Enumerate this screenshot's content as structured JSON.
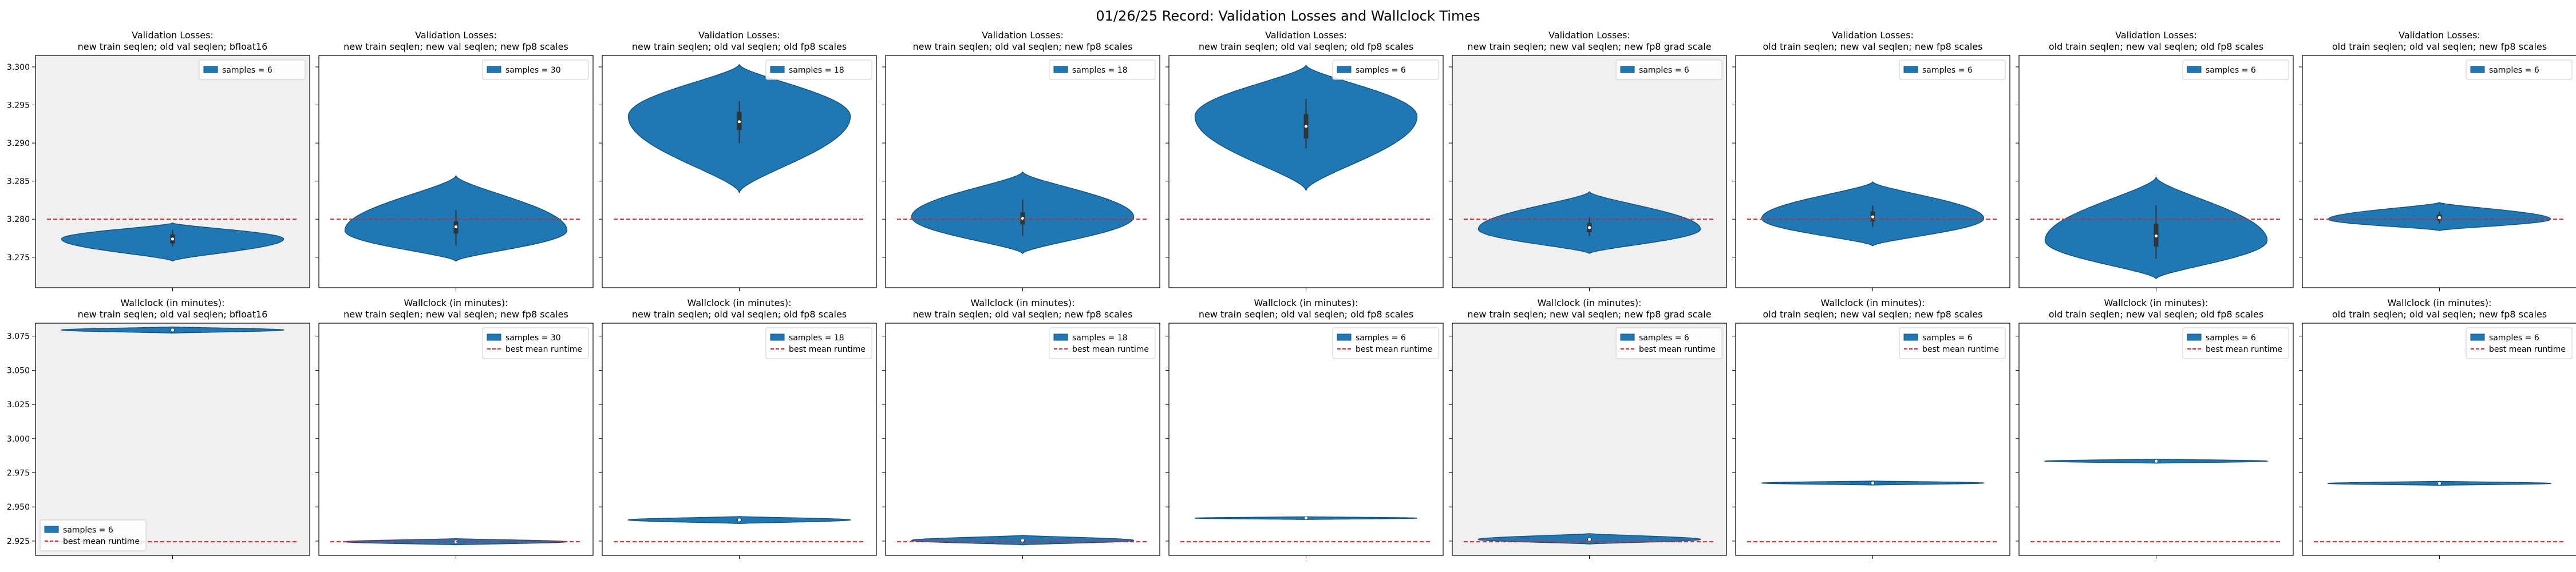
{
  "figure": {
    "title": "01/26/25 Record: Validation Losses and Wallclock Times"
  },
  "colors": {
    "violin_fill": "#1f77b4",
    "violin_edge": "#16557f",
    "reference_line": "#d62728",
    "shaded_panel_bg": "#f0f0f0",
    "panel_bg": "#ffffff",
    "box": "#333333"
  },
  "chart_data": [
    {
      "type": "violin",
      "row": "loss",
      "title": "Validation Losses:",
      "subtitle": "new train seqlen; old val seqlen; bfloat16",
      "ylim": [
        3.271,
        3.3015
      ],
      "yticks": [
        "3.275",
        "3.280",
        "3.285",
        "3.290",
        "3.295",
        "3.300"
      ],
      "reference": 3.28,
      "legend": {
        "position": "upper-right",
        "entries": [
          "samples = 6"
        ]
      },
      "shaded": true,
      "distribution": {
        "median": 3.2774,
        "q1": 3.2768,
        "q3": 3.278,
        "min": 3.2764,
        "max": 3.2786,
        "lo": 3.2745,
        "hi": 3.2795,
        "peak": 3.2774,
        "width": 0.9
      }
    },
    {
      "type": "violin",
      "row": "loss",
      "title": "Validation Losses:",
      "subtitle": "new train seqlen; new val seqlen; new fp8 scales",
      "ylim": [
        3.271,
        3.3015
      ],
      "yticks": [
        "3.275",
        "3.280",
        "3.285",
        "3.290",
        "3.295",
        "3.300"
      ],
      "reference": 3.28,
      "legend": {
        "position": "upper-right",
        "entries": [
          "samples = 30"
        ]
      },
      "shaded": false,
      "distribution": {
        "median": 3.279,
        "q1": 3.2781,
        "q3": 3.2797,
        "min": 3.2765,
        "max": 3.2812,
        "lo": 3.2745,
        "hi": 3.2857,
        "peak": 3.2785,
        "width": 0.9
      }
    },
    {
      "type": "violin",
      "row": "loss",
      "title": "Validation Losses:",
      "subtitle": "new train seqlen; old val seqlen; old fp8 scales",
      "ylim": [
        3.271,
        3.3015
      ],
      "yticks": [
        "3.275",
        "3.280",
        "3.285",
        "3.290",
        "3.295",
        "3.300"
      ],
      "reference": 3.28,
      "legend": {
        "position": "upper-right",
        "entries": [
          "samples = 18"
        ]
      },
      "shaded": false,
      "distribution": {
        "median": 3.2928,
        "q1": 3.2917,
        "q3": 3.2941,
        "min": 3.29,
        "max": 3.2955,
        "lo": 3.2835,
        "hi": 3.3003,
        "peak": 3.2935,
        "width": 0.9
      }
    },
    {
      "type": "violin",
      "row": "loss",
      "title": "Validation Losses:",
      "subtitle": "new train seqlen; old val seqlen; new fp8 scales",
      "ylim": [
        3.271,
        3.3015
      ],
      "yticks": [
        "3.275",
        "3.280",
        "3.285",
        "3.290",
        "3.295",
        "3.300"
      ],
      "reference": 3.28,
      "legend": {
        "position": "upper-right",
        "entries": [
          "samples = 18"
        ]
      },
      "shaded": false,
      "distribution": {
        "median": 3.2801,
        "q1": 3.2793,
        "q3": 3.2809,
        "min": 3.2778,
        "max": 3.2826,
        "lo": 3.2755,
        "hi": 3.2862,
        "peak": 3.2803,
        "width": 0.9
      }
    },
    {
      "type": "violin",
      "row": "loss",
      "title": "Validation Losses:",
      "subtitle": "new train seqlen; old val seqlen; old fp8 scales",
      "ylim": [
        3.271,
        3.3015
      ],
      "yticks": [
        "3.275",
        "3.280",
        "3.285",
        "3.290",
        "3.295",
        "3.300"
      ],
      "reference": 3.28,
      "legend": {
        "position": "upper-right",
        "entries": [
          "samples = 6"
        ]
      },
      "shaded": false,
      "distribution": {
        "median": 3.2922,
        "q1": 3.2906,
        "q3": 3.2938,
        "min": 3.2893,
        "max": 3.2958,
        "lo": 3.2838,
        "hi": 3.3002,
        "peak": 3.2935,
        "width": 0.9
      }
    },
    {
      "type": "violin",
      "row": "loss",
      "title": "Validation Losses:",
      "subtitle": "new train seqlen; new val seqlen; new fp8 grad scale",
      "ylim": [
        3.271,
        3.3015
      ],
      "yticks": [
        "3.275",
        "3.280",
        "3.285",
        "3.290",
        "3.295",
        "3.300"
      ],
      "reference": 3.28,
      "legend": {
        "position": "upper-right",
        "entries": [
          "samples = 6"
        ]
      },
      "shaded": true,
      "distribution": {
        "median": 3.2789,
        "q1": 3.2783,
        "q3": 3.2795,
        "min": 3.2778,
        "max": 3.2802,
        "lo": 3.2755,
        "hi": 3.2836,
        "peak": 3.2787,
        "width": 0.9
      }
    },
    {
      "type": "violin",
      "row": "loss",
      "title": "Validation Losses:",
      "subtitle": "old train seqlen; new val seqlen; new fp8 scales",
      "ylim": [
        3.271,
        3.3015
      ],
      "yticks": [
        "3.275",
        "3.280",
        "3.285",
        "3.290",
        "3.295",
        "3.300"
      ],
      "reference": 3.28,
      "legend": {
        "position": "upper-right",
        "entries": [
          "samples = 6"
        ]
      },
      "shaded": false,
      "distribution": {
        "median": 3.2803,
        "q1": 3.2797,
        "q3": 3.281,
        "min": 3.279,
        "max": 3.2818,
        "lo": 3.2765,
        "hi": 3.2849,
        "peak": 3.2801,
        "width": 0.9
      }
    },
    {
      "type": "violin",
      "row": "loss",
      "title": "Validation Losses:",
      "subtitle": "old train seqlen; new val seqlen; old fp8 scales",
      "ylim": [
        3.271,
        3.3015
      ],
      "yticks": [
        "3.275",
        "3.280",
        "3.285",
        "3.290",
        "3.295",
        "3.300"
      ],
      "reference": 3.28,
      "legend": {
        "position": "upper-right",
        "entries": [
          "samples = 6"
        ]
      },
      "shaded": false,
      "distribution": {
        "median": 3.2778,
        "q1": 3.2764,
        "q3": 3.2794,
        "min": 3.2748,
        "max": 3.2818,
        "lo": 3.2722,
        "hi": 3.2855,
        "peak": 3.2772,
        "width": 0.9
      }
    },
    {
      "type": "violin",
      "row": "loss",
      "title": "Validation Losses:",
      "subtitle": "old train seqlen; old val seqlen; new fp8 scales",
      "ylim": [
        3.271,
        3.3015
      ],
      "yticks": [
        "3.275",
        "3.280",
        "3.285",
        "3.290",
        "3.295",
        "3.300"
      ],
      "reference": 3.28,
      "legend": {
        "position": "upper-right",
        "entries": [
          "samples = 6"
        ]
      },
      "shaded": false,
      "distribution": {
        "median": 3.2802,
        "q1": 3.2798,
        "q3": 3.2806,
        "min": 3.2794,
        "max": 3.281,
        "lo": 3.2785,
        "hi": 3.2822,
        "peak": 3.28,
        "width": 0.9
      }
    },
    {
      "type": "violin",
      "row": "wallclock",
      "title": "Wallclock (in minutes):",
      "subtitle": "new train seqlen; old val seqlen; bfloat16",
      "ylim": [
        2.9145,
        3.0845
      ],
      "yticks": [
        "2.925",
        "2.950",
        "2.975",
        "3.000",
        "3.025",
        "3.050",
        "3.075"
      ],
      "reference": 2.9245,
      "legend": {
        "position": "lower-left",
        "entries": [
          "samples = 6",
          "best mean runtime"
        ]
      },
      "shaded": true,
      "distribution": {
        "median": 3.0795,
        "q1": 3.0791,
        "q3": 3.0799,
        "min": 3.0786,
        "max": 3.0804,
        "lo": 3.0772,
        "hi": 3.0818,
        "peak": 3.0795,
        "width": 0.9
      }
    },
    {
      "type": "violin",
      "row": "wallclock",
      "title": "Wallclock (in minutes):",
      "subtitle": "new train seqlen; new val seqlen; new fp8 scales",
      "ylim": [
        2.9145,
        3.0845
      ],
      "yticks": [
        "2.925",
        "2.950",
        "2.975",
        "3.000",
        "3.025",
        "3.050",
        "3.075"
      ],
      "reference": 2.9245,
      "legend": {
        "position": "upper-right",
        "entries": [
          "samples = 30",
          "best mean runtime"
        ]
      },
      "shaded": false,
      "distribution": {
        "median": 2.9245,
        "q1": 2.9241,
        "q3": 2.9249,
        "min": 2.9236,
        "max": 2.9254,
        "lo": 2.9222,
        "hi": 2.9268,
        "peak": 2.9245,
        "width": 0.9
      }
    },
    {
      "type": "violin",
      "row": "wallclock",
      "title": "Wallclock (in minutes):",
      "subtitle": "new train seqlen; old val seqlen; old fp8 scales",
      "ylim": [
        2.9145,
        3.0845
      ],
      "yticks": [
        "2.925",
        "2.950",
        "2.975",
        "3.000",
        "3.025",
        "3.050",
        "3.075"
      ],
      "reference": 2.9245,
      "legend": {
        "position": "upper-right",
        "entries": [
          "samples = 18",
          "best mean runtime"
        ]
      },
      "shaded": false,
      "distribution": {
        "median": 2.9405,
        "q1": 2.94,
        "q3": 2.941,
        "min": 2.9394,
        "max": 2.9416,
        "lo": 2.9378,
        "hi": 2.943,
        "peak": 2.9405,
        "width": 0.9
      }
    },
    {
      "type": "violin",
      "row": "wallclock",
      "title": "Wallclock (in minutes):",
      "subtitle": "new train seqlen; old val seqlen; new fp8 scales",
      "ylim": [
        2.9145,
        3.0845
      ],
      "yticks": [
        "2.925",
        "2.950",
        "2.975",
        "3.000",
        "3.025",
        "3.050",
        "3.075"
      ],
      "reference": 2.9245,
      "legend": {
        "position": "upper-right",
        "entries": [
          "samples = 18",
          "best mean runtime"
        ]
      },
      "shaded": false,
      "distribution": {
        "median": 2.9255,
        "q1": 2.925,
        "q3": 2.926,
        "min": 2.9244,
        "max": 2.9266,
        "lo": 2.9222,
        "hi": 2.9292,
        "peak": 2.9255,
        "width": 0.9
      }
    },
    {
      "type": "violin",
      "row": "wallclock",
      "title": "Wallclock (in minutes):",
      "subtitle": "new train seqlen; old val seqlen; old fp8 scales",
      "ylim": [
        2.9145,
        3.0845
      ],
      "yticks": [
        "2.925",
        "2.950",
        "2.975",
        "3.000",
        "3.025",
        "3.050",
        "3.075"
      ],
      "reference": 2.9245,
      "legend": {
        "position": "upper-right",
        "entries": [
          "samples = 6",
          "best mean runtime"
        ]
      },
      "shaded": false,
      "distribution": {
        "median": 2.9418,
        "q1": 2.9416,
        "q3": 2.942,
        "min": 2.9414,
        "max": 2.9422,
        "lo": 2.9408,
        "hi": 2.9428,
        "peak": 2.9418,
        "width": 0.9
      }
    },
    {
      "type": "violin",
      "row": "wallclock",
      "title": "Wallclock (in minutes):",
      "subtitle": "new train seqlen; new val seqlen; new fp8 grad scale",
      "ylim": [
        2.9145,
        3.0845
      ],
      "yticks": [
        "2.925",
        "2.950",
        "2.975",
        "3.000",
        "3.025",
        "3.050",
        "3.075"
      ],
      "reference": 2.9245,
      "legend": {
        "position": "upper-right",
        "entries": [
          "samples = 6",
          "best mean runtime"
        ]
      },
      "shaded": true,
      "distribution": {
        "median": 2.9262,
        "q1": 2.9256,
        "q3": 2.9268,
        "min": 2.925,
        "max": 2.9274,
        "lo": 2.9228,
        "hi": 2.9305,
        "peak": 2.9262,
        "width": 0.9
      }
    },
    {
      "type": "violin",
      "row": "wallclock",
      "title": "Wallclock (in minutes):",
      "subtitle": "old train seqlen; new val seqlen; new fp8 scales",
      "ylim": [
        2.9145,
        3.0845
      ],
      "yticks": [
        "2.925",
        "2.950",
        "2.975",
        "3.000",
        "3.025",
        "3.050",
        "3.075"
      ],
      "reference": 2.9245,
      "legend": {
        "position": "upper-right",
        "entries": [
          "samples = 6",
          "best mean runtime"
        ]
      },
      "shaded": false,
      "distribution": {
        "median": 2.9675,
        "q1": 2.9672,
        "q3": 2.9678,
        "min": 2.9669,
        "max": 2.9681,
        "lo": 2.966,
        "hi": 2.969,
        "peak": 2.9675,
        "width": 0.9
      }
    },
    {
      "type": "violin",
      "row": "wallclock",
      "title": "Wallclock (in minutes):",
      "subtitle": "old train seqlen; new val seqlen; old fp8 scales",
      "ylim": [
        2.9145,
        3.0845
      ],
      "yticks": [
        "2.925",
        "2.950",
        "2.975",
        "3.000",
        "3.025",
        "3.050",
        "3.075"
      ],
      "reference": 2.9245,
      "legend": {
        "position": "upper-right",
        "entries": [
          "samples = 6",
          "best mean runtime"
        ]
      },
      "shaded": false,
      "distribution": {
        "median": 2.9835,
        "q1": 2.9832,
        "q3": 2.9838,
        "min": 2.9829,
        "max": 2.9841,
        "lo": 2.982,
        "hi": 2.985,
        "peak": 2.9835,
        "width": 0.9
      }
    },
    {
      "type": "violin",
      "row": "wallclock",
      "title": "Wallclock (in minutes):",
      "subtitle": "old train seqlen; old val seqlen; new fp8 scales",
      "ylim": [
        2.9145,
        3.0845
      ],
      "yticks": [
        "2.925",
        "2.950",
        "2.975",
        "3.000",
        "3.025",
        "3.050",
        "3.075"
      ],
      "reference": 2.9245,
      "legend": {
        "position": "upper-right",
        "entries": [
          "samples = 6",
          "best mean runtime"
        ]
      },
      "shaded": false,
      "distribution": {
        "median": 2.9672,
        "q1": 2.9669,
        "q3": 2.9675,
        "min": 2.9666,
        "max": 2.9678,
        "lo": 2.9658,
        "hi": 2.9688,
        "peak": 2.9672,
        "width": 0.9
      }
    }
  ]
}
